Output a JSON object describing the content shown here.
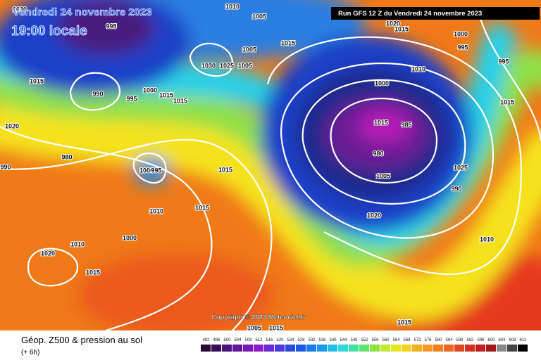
{
  "header": {
    "date": "Vendredi 24 novembre 2023",
    "time": "19:00 locale",
    "run": "Run GFS 12 Z du Vendredi 24 novembre 2023"
  },
  "copyright": "Copyright © 2023 Meteociel.fr",
  "footer": {
    "title": "Géop. Z500 & pression au sol",
    "lead": "(+ 6h)"
  },
  "isobar_labels": [
    "1030",
    "995",
    "1010",
    "1005",
    "1020",
    "1015",
    "1000",
    "995",
    "1015",
    "1005",
    "1030",
    "1025",
    "1005",
    "1015",
    "990",
    "995",
    "1000",
    "1015",
    "1010",
    "1000",
    "995",
    "1015",
    "1020",
    "1015",
    "985",
    "980",
    "980",
    "1000",
    "995",
    "990",
    "1015",
    "1025",
    "1005",
    "990",
    "1010",
    "1015",
    "1020",
    "1000",
    "1020",
    "1010",
    "1010",
    "1015",
    "1015",
    "1005",
    "1015",
    "1015"
  ],
  "legend": {
    "labels": [
      "492",
      "496",
      "500",
      "504",
      "508",
      "512",
      "516",
      "520",
      "524",
      "528",
      "532",
      "536",
      "540",
      "544",
      "548",
      "552",
      "556",
      "560",
      "564",
      "568",
      "572",
      "576",
      "580",
      "584",
      "588",
      "592",
      "596",
      "600",
      "604",
      "608",
      "612"
    ]
  }
}
